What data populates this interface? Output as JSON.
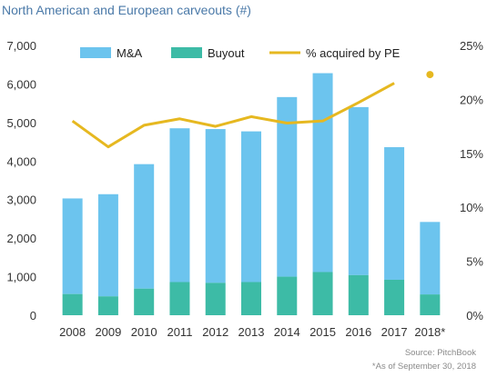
{
  "title": "North American and European carveouts (#)",
  "source": "Source: PitchBook",
  "footnote": "*As of September 30, 2018",
  "colors": {
    "ma": "#6cc4ee",
    "buyout": "#3dbba6",
    "pe": "#e6b820"
  },
  "chart_data": {
    "type": "bar",
    "stacked": true,
    "categories": [
      "2008",
      "2009",
      "2010",
      "2011",
      "2012",
      "2013",
      "2014",
      "2015",
      "2016",
      "2017",
      "2018*"
    ],
    "series": [
      {
        "name": "Buyout",
        "type": "bar",
        "axis": "left",
        "values": [
          550,
          490,
          690,
          860,
          840,
          860,
          1000,
          1120,
          1040,
          920,
          540
        ]
      },
      {
        "name": "M&A",
        "type": "bar",
        "axis": "left",
        "values": [
          2480,
          2650,
          3230,
          3990,
          3990,
          3910,
          4660,
          5160,
          4360,
          3440,
          1880
        ]
      },
      {
        "name": "% acquired by PE",
        "type": "line",
        "axis": "right",
        "values": [
          18.0,
          15.6,
          17.6,
          18.2,
          17.5,
          18.4,
          17.8,
          18.0,
          19.7,
          21.5,
          22.3
        ],
        "line_ends_at": "2017",
        "last_point_as_marker": true
      }
    ],
    "y_left": {
      "min": 0,
      "max": 7000,
      "ticks": [
        "0",
        "1,000",
        "2,000",
        "3,000",
        "4,000",
        "5,000",
        "6,000",
        "7,000"
      ]
    },
    "y_right": {
      "min": 0,
      "max": 25,
      "ticks": [
        "0%",
        "5%",
        "10%",
        "15%",
        "20%",
        "25%"
      ]
    },
    "legend": {
      "position": "top",
      "entries": [
        "M&A",
        "Buyout",
        "% acquired by PE"
      ]
    },
    "grid": false
  }
}
